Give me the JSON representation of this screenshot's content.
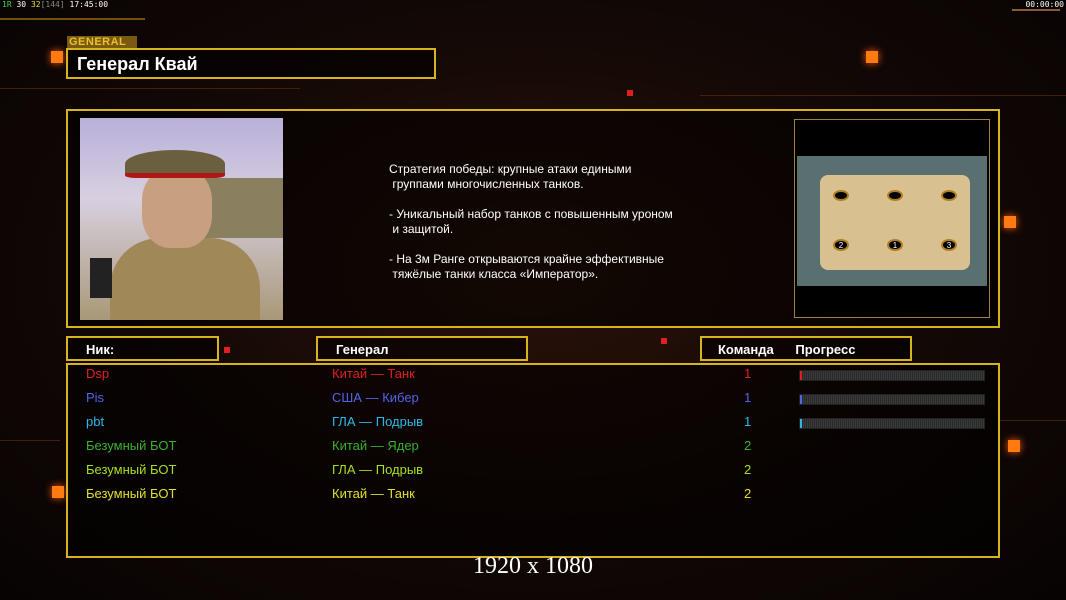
{
  "hud": {
    "left_stats": [
      "1R",
      "30",
      "32",
      "[144]",
      "17:45:00"
    ],
    "right_time": "00:00:00"
  },
  "general_tag": "GENERAL",
  "title": "Генерал Квай",
  "description": "Стратегия победы: крупные атаки едиными\n группами многочисленных танков.\n\n- Уникальный набор танков с повышенным уроном\n и защитой.\n\n- На 3м Ранге открываются крайне эффективные\n тяжёлые танки класса «Император».",
  "map": {
    "start_positions": [
      "1",
      "2",
      "3"
    ]
  },
  "headers": {
    "nick": "Ник:",
    "general": "Генерал",
    "team": "Команда",
    "progress": "Прогресс"
  },
  "players": [
    {
      "nick": "Dsp",
      "general": "Китай — Танк",
      "team": "1",
      "color": "#e02020",
      "progress": 1
    },
    {
      "nick": "Pis",
      "general": "США — Кибер",
      "team": "1",
      "color": "#5464e8",
      "progress": 1
    },
    {
      "nick": "pbt",
      "general": "ГЛА — Подрыв",
      "team": "1",
      "color": "#30b8e8",
      "progress": 1
    },
    {
      "nick": "Безумный БОТ",
      "general": "Китай — Ядер",
      "team": "2",
      "color": "#3cb030",
      "progress": null
    },
    {
      "nick": "Безумный БОТ",
      "general": "ГЛА — Подрыв",
      "team": "2",
      "color": "#a8e020",
      "progress": null
    },
    {
      "nick": "Безумный БОТ",
      "general": "Китай — Танк",
      "team": "2",
      "color": "#e0e030",
      "progress": null
    }
  ],
  "resolution": "1920 x 1080",
  "colors": {
    "accent": "#d8b418",
    "orange": "#ff7a10"
  }
}
